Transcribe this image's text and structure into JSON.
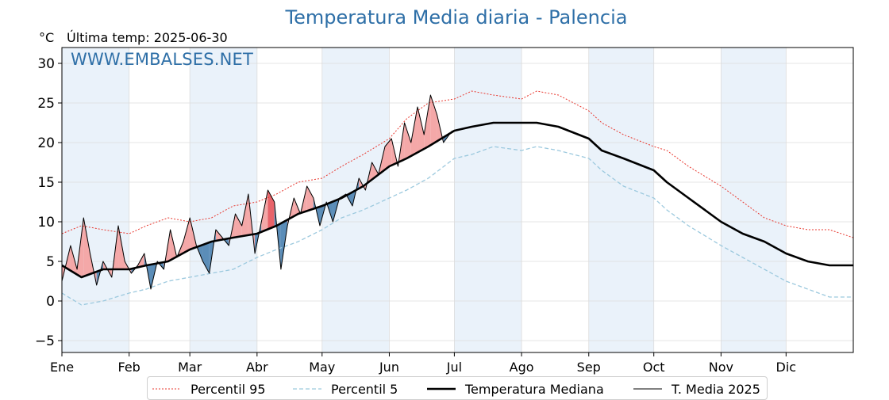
{
  "title": "Temperatura Media diaria - Palencia",
  "unit_label": "°C",
  "last_temp_label": "Última temp: 2025-06-30",
  "watermark": "WWW.EMBALSES.NET",
  "colors": {
    "p95": "#e8382f",
    "p5": "#9cc9de",
    "median": "#000000",
    "current": "#000000",
    "warm_fill": "#f4a8a8",
    "warm_fill_strong": "#e8636a",
    "cold_fill": "#5b8db8",
    "month_band": "#eaf2fa",
    "title": "#2e6fa7"
  },
  "chart_data": {
    "type": "line",
    "title": "Temperatura Media diaria - Palencia",
    "ylabel": "°C",
    "ylim": [
      -6.5,
      32
    ],
    "yticks": [
      -5,
      0,
      5,
      10,
      15,
      20,
      25,
      30
    ],
    "xlim": [
      1,
      366
    ],
    "months": [
      {
        "label": "Ene",
        "day": 1
      },
      {
        "label": "Feb",
        "day": 32
      },
      {
        "label": "Mar",
        "day": 60
      },
      {
        "label": "Abr",
        "day": 91
      },
      {
        "label": "May",
        "day": 121
      },
      {
        "label": "Jun",
        "day": 152
      },
      {
        "label": "Jul",
        "day": 182
      },
      {
        "label": "Ago",
        "day": 213
      },
      {
        "label": "Sep",
        "day": 244
      },
      {
        "label": "Oct",
        "day": 274
      },
      {
        "label": "Nov",
        "day": 305
      },
      {
        "label": "Dic",
        "day": 335
      }
    ],
    "grid": true,
    "legend_position": "bottom-center",
    "legend": [
      "Percentil 95",
      "Percentil 5",
      "Temperatura Mediana",
      "T. Media 2025"
    ],
    "series": [
      {
        "name": "Percentil 95",
        "style": "dotted",
        "x": [
          1,
          10,
          20,
          32,
          40,
          50,
          60,
          70,
          80,
          91,
          100,
          110,
          121,
          130,
          140,
          152,
          160,
          170,
          182,
          190,
          200,
          213,
          220,
          230,
          244,
          250,
          260,
          274,
          280,
          290,
          305,
          315,
          325,
          335,
          345,
          355,
          366
        ],
        "y": [
          8.5,
          9.5,
          9.0,
          8.5,
          9.5,
          10.5,
          10.0,
          10.5,
          12.0,
          12.5,
          13.5,
          15.0,
          15.5,
          17.0,
          18.5,
          20.5,
          23.0,
          25.0,
          25.5,
          26.5,
          26.0,
          25.5,
          26.5,
          26.0,
          24.0,
          22.5,
          21.0,
          19.5,
          19.0,
          17.0,
          14.5,
          12.5,
          10.5,
          9.5,
          9.0,
          9.0,
          8.0
        ]
      },
      {
        "name": "Percentil 5",
        "style": "dashed",
        "x": [
          1,
          10,
          20,
          32,
          40,
          50,
          60,
          70,
          80,
          91,
          100,
          110,
          121,
          130,
          140,
          152,
          160,
          170,
          182,
          190,
          200,
          213,
          220,
          230,
          244,
          250,
          260,
          274,
          280,
          290,
          305,
          315,
          325,
          335,
          345,
          355,
          366
        ],
        "y": [
          1.0,
          -0.5,
          0.0,
          1.0,
          1.5,
          2.5,
          3.0,
          3.5,
          4.0,
          5.5,
          6.5,
          7.5,
          9.0,
          10.5,
          11.5,
          13.0,
          14.0,
          15.5,
          18.0,
          18.5,
          19.5,
          19.0,
          19.5,
          19.0,
          18.0,
          16.5,
          14.5,
          13.0,
          11.5,
          9.5,
          7.0,
          5.5,
          4.0,
          2.5,
          1.5,
          0.5,
          0.5
        ]
      },
      {
        "name": "Temperatura Mediana",
        "style": "solid-thick",
        "x": [
          1,
          10,
          20,
          32,
          40,
          50,
          60,
          70,
          80,
          91,
          100,
          110,
          121,
          130,
          140,
          152,
          160,
          170,
          182,
          190,
          200,
          213,
          220,
          230,
          244,
          250,
          260,
          274,
          280,
          290,
          305,
          315,
          325,
          335,
          345,
          355,
          366
        ],
        "y": [
          4.5,
          3.0,
          4.0,
          4.0,
          4.5,
          5.0,
          6.5,
          7.5,
          8.0,
          8.5,
          9.5,
          11.0,
          12.0,
          13.0,
          14.5,
          17.0,
          18.0,
          19.5,
          21.5,
          22.0,
          22.5,
          22.5,
          22.5,
          22.0,
          20.5,
          19.0,
          18.0,
          16.5,
          15.0,
          13.0,
          10.0,
          8.5,
          7.5,
          6.0,
          5.0,
          4.5,
          4.5
        ]
      },
      {
        "name": "T. Media 2025",
        "style": "solid-thin",
        "x": [
          1,
          5,
          8,
          11,
          14,
          17,
          20,
          24,
          27,
          30,
          33,
          36,
          39,
          42,
          45,
          48,
          51,
          54,
          57,
          60,
          63,
          66,
          69,
          72,
          75,
          78,
          81,
          84,
          87,
          90,
          93,
          96,
          99,
          102,
          105,
          108,
          111,
          114,
          117,
          120,
          123,
          126,
          129,
          132,
          135,
          138,
          141,
          144,
          147,
          150,
          153,
          156,
          159,
          162,
          165,
          168,
          171,
          174,
          177,
          181
        ],
        "y": [
          2.5,
          7.0,
          4.0,
          10.5,
          6.0,
          2.0,
          5.0,
          3.0,
          9.5,
          5.0,
          3.5,
          4.5,
          6.0,
          1.5,
          5.0,
          4.0,
          9.0,
          5.5,
          7.5,
          10.5,
          7.0,
          5.0,
          3.5,
          9.0,
          8.0,
          7.0,
          11.0,
          9.5,
          13.5,
          6.0,
          10.0,
          14.0,
          12.5,
          4.0,
          9.5,
          13.0,
          11.0,
          14.5,
          13.0,
          9.5,
          12.5,
          10.0,
          13.0,
          13.5,
          12.0,
          15.5,
          14.0,
          17.5,
          16.0,
          19.5,
          20.5,
          17.0,
          22.5,
          20.0,
          24.5,
          21.0,
          26.0,
          23.5,
          20.0,
          21.5
        ]
      }
    ]
  },
  "legend": {
    "items": [
      {
        "label": "Percentil 95"
      },
      {
        "label": "Percentil 5"
      },
      {
        "label": "Temperatura Mediana"
      },
      {
        "label": "T. Media 2025"
      }
    ]
  }
}
